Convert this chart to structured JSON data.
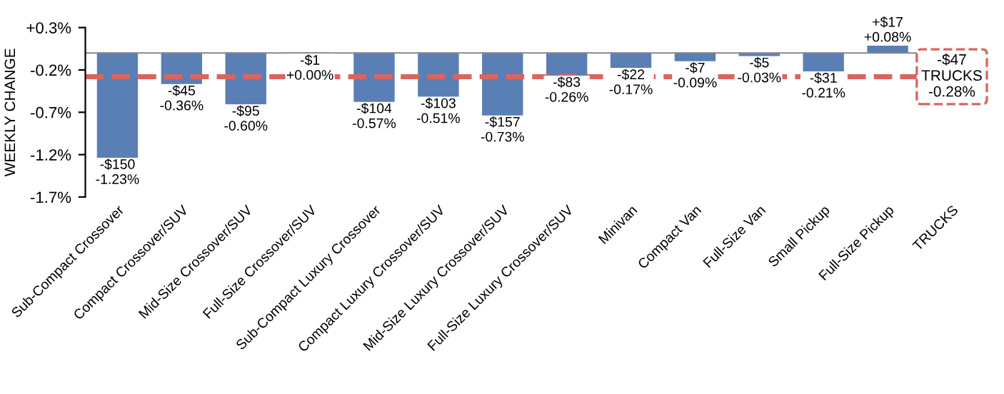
{
  "chart_data": {
    "type": "bar",
    "ylabel": "WEEKLY CHANGE",
    "categories": [
      "Sub-Compact Crossover",
      "Compact Crossover/SUV",
      "Mid-Size Crossover/SUV",
      "Full-Size Crossover/SUV",
      "Sub-Compact Luxury Crossover",
      "Compact Luxury Crossover/SUV",
      "Mid-Size Luxury Crossover/SUV",
      "Full-Size Luxury Crossover/SUV",
      "Minivan",
      "Compact Van",
      "Full-Size Van",
      "Small Pickup",
      "Full-Size Pickup",
      "TRUCKS"
    ],
    "values": [
      -1.23,
      -0.36,
      -0.6,
      0.0,
      -0.57,
      -0.51,
      -0.73,
      -0.26,
      -0.17,
      -0.09,
      -0.03,
      -0.21,
      0.08,
      null
    ],
    "value_labels": [
      "-$150\n-1.23%",
      "-$45\n-0.36%",
      "-$95\n-0.60%",
      "-$1\n+0.00%",
      "-$104\n-0.57%",
      "-$103\n-0.51%",
      "-$157\n-0.73%",
      "-$83\n-0.26%",
      "-$22\n-0.17%",
      "-$7\n-0.09%",
      "-$5\n-0.03%",
      "-$31\n-0.21%",
      "+$17\n+0.08%",
      null
    ],
    "color": "#5a7fb5",
    "ylim": [
      -1.7,
      0.3
    ],
    "yticks": [
      {
        "value": 0.3,
        "label": "+0.3%"
      },
      {
        "value": -0.2,
        "label": "-0.2%"
      },
      {
        "value": -0.7,
        "label": "-0.7%"
      },
      {
        "value": -1.2,
        "label": "-1.2%"
      },
      {
        "value": -1.7,
        "label": "-1.7%"
      }
    ],
    "ref_lines": [
      {
        "axis": "y",
        "value": -0.28,
        "label": "-$47\nTRUCKS\n-0.28%",
        "color": "#d9655f",
        "line_style": "dashed"
      }
    ],
    "grid": false,
    "legend": false
  }
}
